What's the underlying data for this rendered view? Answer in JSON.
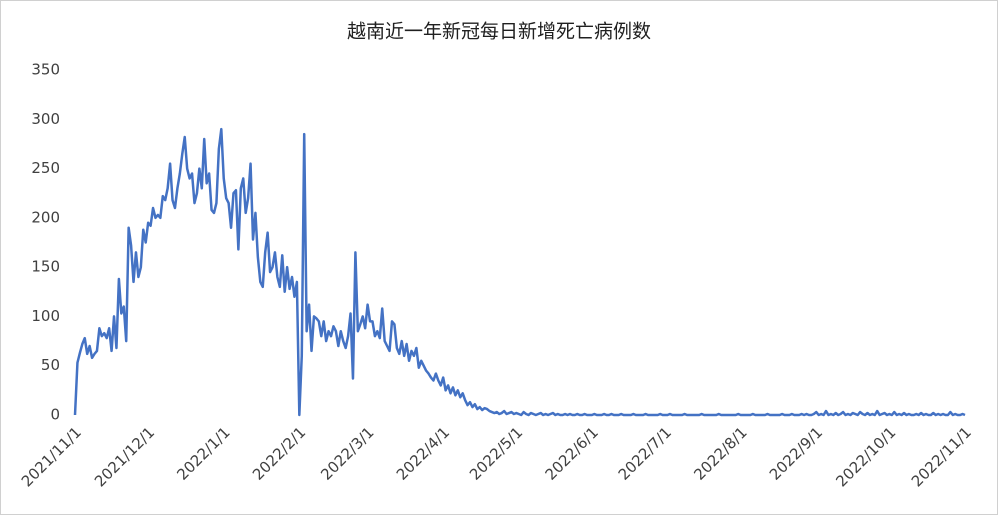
{
  "chart_data": {
    "type": "line",
    "title": "越南近一年新冠每日新增死亡病例数",
    "color": "#4472c4",
    "grid": false,
    "ylim": [
      0,
      350
    ],
    "yticks": [
      0,
      50,
      100,
      150,
      200,
      250,
      300,
      350
    ],
    "categories": [
      "2021/11/1",
      null,
      null,
      null,
      null,
      null,
      null,
      null,
      null,
      null,
      null,
      null,
      null,
      null,
      null,
      null,
      null,
      null,
      null,
      null,
      null,
      null,
      null,
      null,
      null,
      null,
      null,
      null,
      null,
      null,
      "2021/12/1",
      null,
      null,
      null,
      null,
      null,
      null,
      null,
      null,
      null,
      null,
      null,
      null,
      null,
      null,
      null,
      null,
      null,
      null,
      null,
      null,
      null,
      null,
      null,
      null,
      null,
      null,
      null,
      null,
      null,
      null,
      "2022/1/1",
      null,
      null,
      null,
      null,
      null,
      null,
      null,
      null,
      null,
      null,
      null,
      null,
      null,
      null,
      null,
      null,
      null,
      null,
      null,
      null,
      null,
      null,
      null,
      null,
      null,
      null,
      null,
      null,
      null,
      null,
      "2022/2/1",
      null,
      null,
      null,
      null,
      null,
      null,
      null,
      null,
      null,
      null,
      null,
      null,
      null,
      null,
      null,
      null,
      null,
      null,
      null,
      null,
      null,
      null,
      null,
      null,
      null,
      null,
      null,
      "2022/3/1",
      null,
      null,
      null,
      null,
      null,
      null,
      null,
      null,
      null,
      null,
      null,
      null,
      null,
      null,
      null,
      null,
      null,
      null,
      null,
      null,
      null,
      null,
      null,
      null,
      null,
      null,
      null,
      null,
      null,
      null,
      "2022/4/1",
      null,
      null,
      null,
      null,
      null,
      null,
      null,
      null,
      null,
      null,
      null,
      null,
      null,
      null,
      null,
      null,
      null,
      null,
      null,
      null,
      null,
      null,
      null,
      null,
      null,
      null,
      null,
      null,
      null,
      "2022/5/1",
      null,
      null,
      null,
      null,
      null,
      null,
      null,
      null,
      null,
      null,
      null,
      null,
      null,
      null,
      null,
      null,
      null,
      null,
      null,
      null,
      null,
      null,
      null,
      null,
      null,
      null,
      null,
      null,
      null,
      null,
      "2022/6/1",
      null,
      null,
      null,
      null,
      null,
      null,
      null,
      null,
      null,
      null,
      null,
      null,
      null,
      null,
      null,
      null,
      null,
      null,
      null,
      null,
      null,
      null,
      null,
      null,
      null,
      null,
      null,
      null,
      null,
      "2022/7/1",
      null,
      null,
      null,
      null,
      null,
      null,
      null,
      null,
      null,
      null,
      null,
      null,
      null,
      null,
      null,
      null,
      null,
      null,
      null,
      null,
      null,
      null,
      null,
      null,
      null,
      null,
      null,
      null,
      null,
      null,
      "2022/8/1",
      null,
      null,
      null,
      null,
      null,
      null,
      null,
      null,
      null,
      null,
      null,
      null,
      null,
      null,
      null,
      null,
      null,
      null,
      null,
      null,
      null,
      null,
      null,
      null,
      null,
      null,
      null,
      null,
      null,
      null,
      "2022/9/1",
      null,
      null,
      null,
      null,
      null,
      null,
      null,
      null,
      null,
      null,
      null,
      null,
      null,
      null,
      null,
      null,
      null,
      null,
      null,
      null,
      null,
      null,
      null,
      null,
      null,
      null,
      null,
      null,
      null,
      "2022/10/1",
      null,
      null,
      null,
      null,
      null,
      null,
      null,
      null,
      null,
      null,
      null,
      null,
      null,
      null,
      null,
      null,
      null,
      null,
      null,
      null,
      null,
      null,
      null,
      null,
      null,
      null,
      null,
      null,
      null,
      null,
      "2022/11/1"
    ],
    "values": [
      0,
      53,
      63,
      72,
      78,
      62,
      70,
      58,
      62,
      65,
      88,
      80,
      83,
      78,
      88,
      65,
      100,
      68,
      138,
      103,
      110,
      75,
      190,
      172,
      135,
      165,
      140,
      150,
      188,
      175,
      195,
      192,
      210,
      200,
      203,
      200,
      222,
      218,
      230,
      255,
      218,
      210,
      230,
      245,
      265,
      282,
      250,
      240,
      245,
      215,
      225,
      250,
      230,
      280,
      235,
      245,
      208,
      205,
      215,
      270,
      290,
      240,
      220,
      215,
      190,
      225,
      228,
      168,
      230,
      240,
      205,
      220,
      255,
      178,
      205,
      160,
      135,
      130,
      165,
      185,
      145,
      150,
      165,
      140,
      130,
      162,
      125,
      150,
      128,
      140,
      120,
      135,
      0,
      60,
      285,
      85,
      112,
      65,
      100,
      98,
      95,
      80,
      95,
      75,
      85,
      80,
      90,
      85,
      70,
      85,
      75,
      68,
      80,
      103,
      37,
      165,
      85,
      92,
      100,
      88,
      112,
      95,
      95,
      80,
      85,
      78,
      108,
      75,
      70,
      65,
      95,
      92,
      68,
      62,
      75,
      60,
      72,
      55,
      65,
      60,
      68,
      48,
      55,
      50,
      45,
      42,
      38,
      35,
      42,
      35,
      30,
      38,
      25,
      30,
      22,
      28,
      20,
      25,
      18,
      22,
      15,
      10,
      13,
      8,
      11,
      6,
      8,
      5,
      7,
      6,
      4,
      3,
      2,
      3,
      1,
      2,
      4,
      1,
      2,
      3,
      1,
      2,
      1,
      0,
      3,
      1,
      0,
      2,
      1,
      0,
      1,
      2,
      0,
      1,
      0,
      1,
      2,
      0,
      1,
      0,
      0,
      1,
      0,
      1,
      0,
      0,
      1,
      0,
      0,
      1,
      0,
      0,
      0,
      1,
      0,
      0,
      0,
      1,
      0,
      0,
      1,
      0,
      0,
      0,
      1,
      0,
      0,
      0,
      0,
      1,
      0,
      0,
      0,
      0,
      1,
      0,
      0,
      0,
      0,
      0,
      1,
      0,
      0,
      0,
      1,
      0,
      0,
      0,
      0,
      0,
      1,
      0,
      0,
      0,
      0,
      0,
      0,
      1,
      0,
      0,
      0,
      0,
      0,
      0,
      1,
      0,
      0,
      0,
      0,
      0,
      0,
      0,
      1,
      0,
      0,
      0,
      0,
      0,
      1,
      0,
      0,
      0,
      0,
      0,
      1,
      0,
      0,
      0,
      0,
      0,
      1,
      0,
      0,
      0,
      1,
      0,
      0,
      0,
      1,
      0,
      1,
      0,
      0,
      1,
      3,
      0,
      1,
      0,
      4,
      0,
      1,
      0,
      2,
      0,
      1,
      3,
      0,
      1,
      0,
      2,
      1,
      0,
      3,
      1,
      0,
      2,
      0,
      1,
      0,
      4,
      0,
      1,
      2,
      0,
      1,
      0,
      3,
      0,
      1,
      0,
      2,
      0,
      1,
      0,
      0,
      1,
      0,
      2,
      0,
      1,
      0,
      0,
      2,
      0,
      1,
      0,
      1,
      0,
      0,
      3,
      0,
      1,
      0,
      0,
      1,
      0
    ]
  }
}
